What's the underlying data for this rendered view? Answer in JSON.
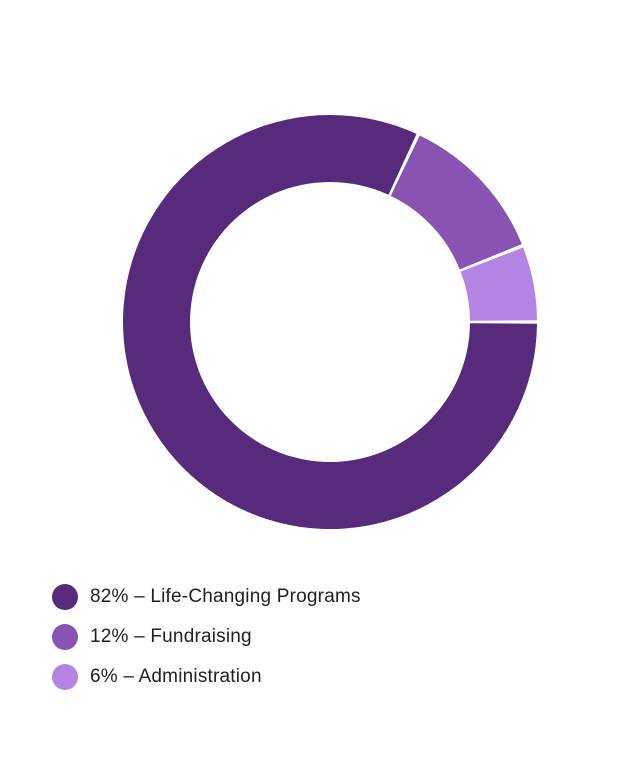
{
  "chart_data": {
    "type": "pie",
    "variant": "donut",
    "categories": [
      "Life-Changing Programs",
      "Fundraising",
      "Administration"
    ],
    "values": [
      82,
      12,
      6
    ],
    "unit": "%",
    "colors": [
      "#582a7b",
      "#8953b3",
      "#b583e4"
    ],
    "legend_position": "bottom-left",
    "legend": [
      {
        "label": "82% – Life-Changing Programs",
        "color": "#582a7b"
      },
      {
        "label": "12% – Fundraising",
        "color": "#8953b3"
      },
      {
        "label": "6% – Administration",
        "color": "#b583e4"
      }
    ]
  }
}
